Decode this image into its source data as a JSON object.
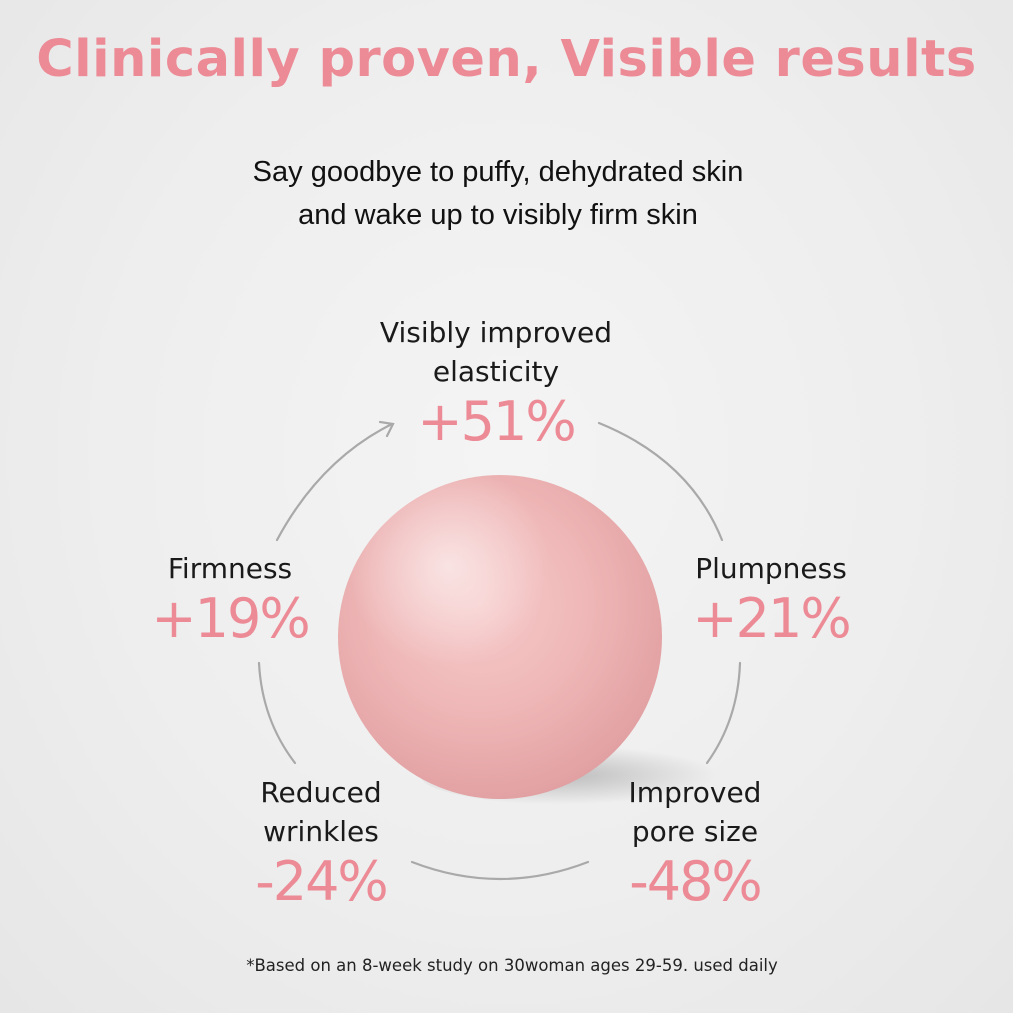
{
  "headline": "Clinically proven, Visible results",
  "subtitle": {
    "line1": "Say goodbye to puffy, dehydrated skin",
    "line2": "and wake up to visibly firm skin"
  },
  "stats": {
    "elasticity": {
      "label": "Visibly improved\nelasticity",
      "value": "+51%"
    },
    "plumpness": {
      "label": "Plumpness",
      "value": "+21%"
    },
    "pores": {
      "label": "Improved\npore size",
      "value": "-48%"
    },
    "wrinkles": {
      "label": "Reduced\nwrinkles",
      "value": "-24%"
    },
    "firmness": {
      "label": "Firmness",
      "value": "+19%"
    }
  },
  "colors": {
    "accent": "#ec8a95",
    "text": "#1a1a1a",
    "cycle_line": "#a9a9a9",
    "orb": "#efb7b7",
    "background": "#eeeeee"
  },
  "footnote": "*Based on an 8-week study on 30woman ages 29-59. used daily"
}
